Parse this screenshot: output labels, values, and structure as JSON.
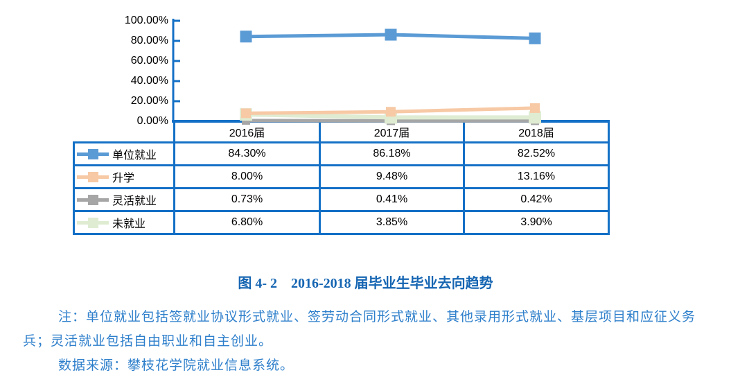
{
  "chart_data": {
    "type": "line",
    "title": "图 4- 2　2016-2018 届毕业生毕业去向趋势",
    "categories": [
      "2016届",
      "2017届",
      "2018届"
    ],
    "series": [
      {
        "name": "单位就业",
        "values": [
          84.3,
          86.18,
          82.52
        ],
        "cells": [
          "84.30%",
          "86.18%",
          "82.52%"
        ],
        "color": "#5B9BD5"
      },
      {
        "name": "升学",
        "values": [
          8.0,
          9.48,
          13.16
        ],
        "cells": [
          "8.00%",
          "9.48%",
          "13.16%"
        ],
        "color": "#F7C9A5"
      },
      {
        "name": "灵活就业",
        "values": [
          0.73,
          0.41,
          0.42
        ],
        "cells": [
          "0.73%",
          "0.41%",
          "0.42%"
        ],
        "color": "#A6A6A6"
      },
      {
        "name": "未就业",
        "values": [
          6.8,
          3.85,
          3.9
        ],
        "cells": [
          "6.80%",
          "3.85%",
          "3.90%"
        ],
        "color": "#DFECD2"
      }
    ],
    "y_ticks": [
      "100.00%",
      "80.00%",
      "60.00%",
      "40.00%",
      "20.00%",
      "0.00%"
    ],
    "ylim": [
      0,
      100
    ],
    "grid": false,
    "marker": "square",
    "legend_position": "table-left"
  },
  "caption": "图 4- 2　2016-2018 届毕业生毕业去向趋势",
  "notes": {
    "line1": "注：单位就业包括签就业协议形式就业、签劳动合同形式就业、其他录用形式就业、基层项目和应征义务",
    "line2": "兵；灵活就业包括自由职业和自主创业。",
    "line3": "数据来源：攀枝花学院就业信息系统。"
  },
  "colors": {
    "axis": "#1470C6",
    "table_border": "#1470C6",
    "caption_text": "#1565B2",
    "note_text": "#2E7FCB"
  }
}
